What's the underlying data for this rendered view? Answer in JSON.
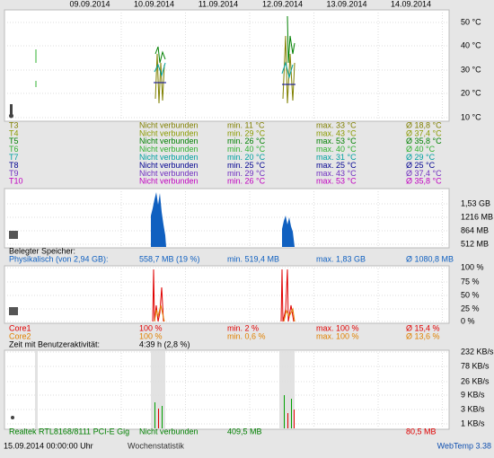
{
  "dates": [
    "09.09.2014",
    "10.09.2014",
    "11.09.2014",
    "12.09.2014",
    "13.09.2014",
    "14.09.2014"
  ],
  "temperature": {
    "yticks": [
      "50 °C",
      "40 °C",
      "30 °C",
      "20 °C",
      "10 °C"
    ],
    "sensors": [
      {
        "name": "T3",
        "color": "#808000",
        "status": "Nicht verbunden",
        "min": "min. 11 °C",
        "max": "max. 33 °C",
        "avg": "Ø 18,8 °C"
      },
      {
        "name": "T4",
        "color": "#8a9a00",
        "status": "Nicht verbunden",
        "min": "min. 29 °C",
        "max": "max. 43 °C",
        "avg": "Ø 37,4 °C"
      },
      {
        "name": "T5",
        "color": "#008000",
        "status": "Nicht verbunden",
        "min": "min. 26 °C",
        "max": "max. 53 °C",
        "avg": "Ø 35,8 °C"
      },
      {
        "name": "T6",
        "color": "#30b030",
        "status": "Nicht verbunden",
        "min": "min. 40 °C",
        "max": "max. 40 °C",
        "avg": "Ø 40 °C"
      },
      {
        "name": "T7",
        "color": "#00a0a0",
        "status": "Nicht verbunden",
        "min": "min. 20 °C",
        "max": "max. 31 °C",
        "avg": "Ø 29 °C"
      },
      {
        "name": "T8",
        "color": "#000090",
        "status": "Nicht verbunden",
        "min": "min. 25 °C",
        "max": "max. 25 °C",
        "avg": "Ø 25 °C"
      },
      {
        "name": "T9",
        "color": "#7030c0",
        "status": "Nicht verbunden",
        "min": "min. 29 °C",
        "max": "max. 43 °C",
        "avg": "Ø 37,4 °C"
      },
      {
        "name": "T10",
        "color": "#c000c0",
        "status": "Nicht verbunden",
        "min": "min. 26 °C",
        "max": "max. 53 °C",
        "avg": "Ø 35,8 °C"
      }
    ]
  },
  "memory": {
    "yticks": [
      "1,53 GB",
      "1216 MB",
      "864 MB",
      "512 MB"
    ],
    "heading": "Belegter Speicher:",
    "row": {
      "name": "Physikalisch (von 2,94 GB):",
      "color": "#1060c0",
      "current": "558,7 MB (19 %)",
      "min": "min. 519,4 MB",
      "max": "max. 1,83 GB",
      "avg": "Ø 1080,8 MB"
    }
  },
  "cpu": {
    "yticks": [
      "100 %",
      "75 %",
      "50 %",
      "25 %",
      "0 %"
    ],
    "cores": [
      {
        "name": "Core1",
        "color": "#e00000",
        "current": "100 %",
        "min": "min. 2 %",
        "max": "max. 100 %",
        "avg": "Ø 15,4 %"
      },
      {
        "name": "Core2",
        "color": "#e08000",
        "current": "100 %",
        "min": "min. 0,6 %",
        "max": "max. 100 %",
        "avg": "Ø 13,6 %"
      }
    ],
    "activity_label": "Zeit mit Benutzeraktivität:",
    "activity_value": "4:39 h (2,8 %)"
  },
  "network": {
    "yticks": [
      "232 KB/s",
      "78 KB/s",
      "26 KB/s",
      "9 KB/s",
      "3 KB/s",
      "1 KB/s"
    ],
    "row": {
      "name": "Realtek RTL8168/8111 PCI-E Gig",
      "status": "Nicht verbunden",
      "sent": "409,5 MB",
      "received": "80,5 MB"
    }
  },
  "footer": {
    "timestamp": "15.09.2014 00:00:00 Uhr",
    "view": "Wochenstatistik",
    "version": "WebTemp 3.38"
  }
}
